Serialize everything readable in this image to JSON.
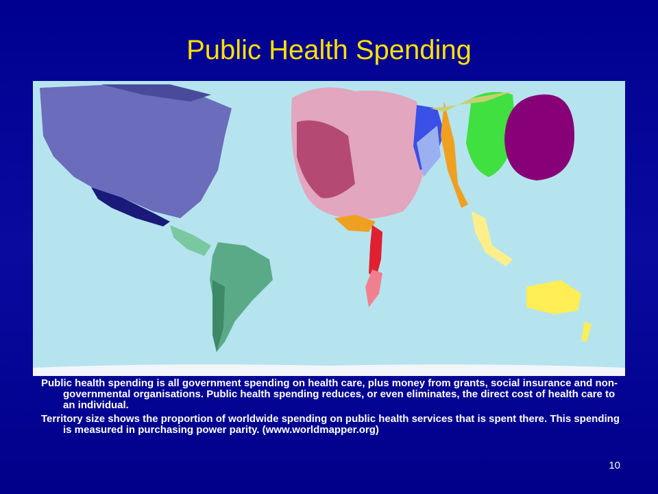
{
  "title": "Public Health Spending",
  "paragraphs": [
    "Public health spending is all government spending on health care, plus money from grants, social insurance and non-governmental organisations. Public health spending reduces, or even eliminates, the direct cost of health care to an individual.",
    "Territory size shows the proportion of worldwide spending on public health services that is spent there. This spending is measured in purchasing power parity. (www.worldmapper.org)"
  ],
  "page_number": "10"
}
